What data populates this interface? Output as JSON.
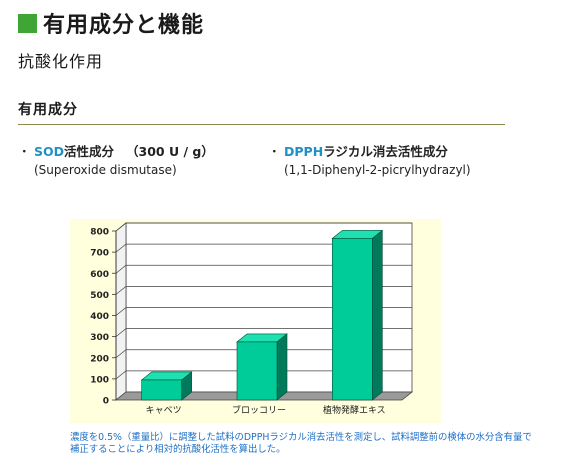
{
  "page": {
    "title": "有用成分と機能",
    "subtitle": "抗酸化作用",
    "section_heading": "有用成分",
    "title_square_color": "#3fa535"
  },
  "components": [
    {
      "bullet": "・",
      "name_accent": "SOD",
      "name_rest": "活性成分",
      "value": "（300 U / g）",
      "detail": "(Superoxide dismutase)"
    },
    {
      "bullet": "・",
      "name_accent": "DPPH",
      "name_rest": "ラジカル消去活性成分",
      "value": "",
      "detail": "(1,1-Diphenyl-2-picrylhydrazyl)"
    }
  ],
  "chart_data": {
    "type": "bar",
    "categories": [
      "キャベツ",
      "ブロッコリー",
      "植物発酵エキス"
    ],
    "values": [
      95,
      275,
      765
    ],
    "y_ticks": [
      0,
      100,
      200,
      300,
      400,
      500,
      600,
      700,
      800
    ],
    "ylim": [
      0,
      800
    ],
    "grid": true,
    "three_d": true,
    "colors": {
      "bar_front": "#00cc99",
      "bar_top": "#1fe0b0",
      "bar_side": "#007a5a",
      "background": "#ffffdd",
      "floor": "#9a9a9a"
    }
  },
  "footnote": "濃度を0.5%（重量比）に調整した試料のDPPHラジカル消去活性を測定し、試料調整前の検体の水分含有量で補正することにより相対的抗酸化活性を算出した。"
}
